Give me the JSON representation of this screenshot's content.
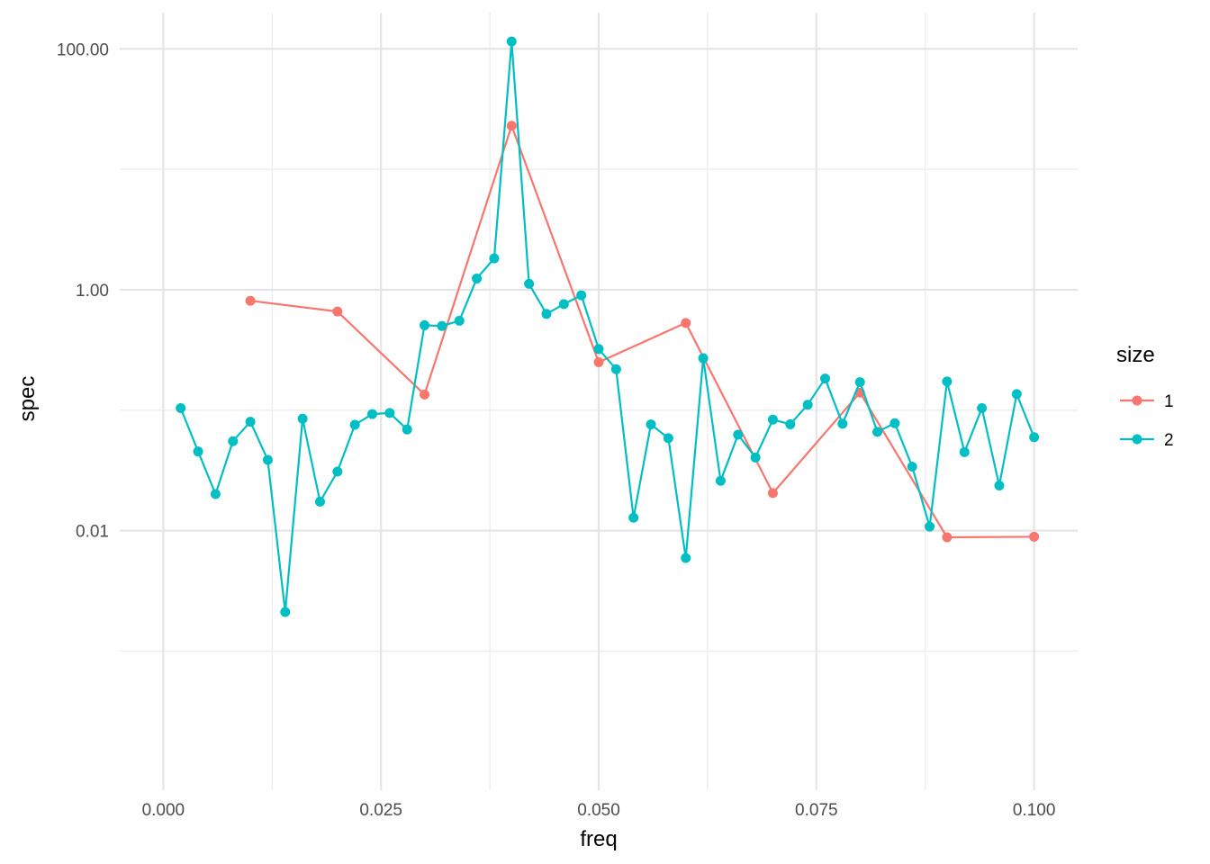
{
  "chart_data": {
    "type": "line",
    "xlabel": "freq",
    "ylabel": "spec",
    "x_ticks": [
      "0.000",
      "0.025",
      "0.050",
      "0.075",
      "0.100"
    ],
    "x_tick_values": [
      0.0,
      0.025,
      0.05,
      0.075,
      0.1
    ],
    "y_ticks": [
      "0.01",
      "1.00",
      "100.00"
    ],
    "y_tick_values": [
      0.01,
      1,
      100
    ],
    "y_scale": "log10",
    "xlim": [
      -0.005,
      0.105
    ],
    "ylim": [
      7e-05,
      200
    ],
    "grid": true,
    "legend": {
      "title": "size",
      "position": "right"
    },
    "series": [
      {
        "name": "1",
        "color": "#F8766D",
        "points": [
          [
            0.01,
            0.81
          ],
          [
            0.02,
            0.66
          ],
          [
            0.03,
            0.135
          ],
          [
            0.04,
            23.0
          ],
          [
            0.05,
            0.25
          ],
          [
            0.06,
            0.53
          ],
          [
            0.07,
            0.0205
          ],
          [
            0.08,
            0.14
          ],
          [
            0.09,
            0.0088
          ],
          [
            0.1,
            0.0089
          ]
        ]
      },
      {
        "name": "2",
        "color": "#00BFC4",
        "points": [
          [
            0.002,
            0.104
          ],
          [
            0.004,
            0.0454
          ],
          [
            0.006,
            0.0201
          ],
          [
            0.008,
            0.0553
          ],
          [
            0.01,
            0.0802
          ],
          [
            0.012,
            0.0387
          ],
          [
            0.014,
            0.00211
          ],
          [
            0.016,
            0.0849
          ],
          [
            0.018,
            0.0174
          ],
          [
            0.02,
            0.0309
          ],
          [
            0.022,
            0.0756
          ],
          [
            0.024,
            0.0928
          ],
          [
            0.026,
            0.0948
          ],
          [
            0.028,
            0.0692
          ],
          [
            0.03,
            0.507
          ],
          [
            0.032,
            0.5
          ],
          [
            0.034,
            0.553
          ],
          [
            0.036,
            1.24
          ],
          [
            0.038,
            1.82
          ],
          [
            0.04,
            115.0
          ],
          [
            0.042,
            1.12
          ],
          [
            0.044,
            0.63
          ],
          [
            0.046,
            0.76
          ],
          [
            0.048,
            0.9
          ],
          [
            0.05,
            0.322
          ],
          [
            0.052,
            0.219
          ],
          [
            0.054,
            0.0128
          ],
          [
            0.056,
            0.0762
          ],
          [
            0.058,
            0.0586
          ],
          [
            0.06,
            0.00593
          ],
          [
            0.062,
            0.27
          ],
          [
            0.064,
            0.0259
          ],
          [
            0.066,
            0.0626
          ],
          [
            0.068,
            0.0405
          ],
          [
            0.07,
            0.0836
          ],
          [
            0.072,
            0.0764
          ],
          [
            0.074,
            0.111
          ],
          [
            0.076,
            0.183
          ],
          [
            0.078,
            0.0772
          ],
          [
            0.08,
            0.171
          ],
          [
            0.082,
            0.0661
          ],
          [
            0.084,
            0.078
          ],
          [
            0.086,
            0.034
          ],
          [
            0.088,
            0.0108
          ],
          [
            0.09,
            0.173
          ],
          [
            0.092,
            0.0449
          ],
          [
            0.094,
            0.104
          ],
          [
            0.096,
            0.0237
          ],
          [
            0.098,
            0.136
          ],
          [
            0.1,
            0.0597
          ]
        ]
      }
    ]
  }
}
